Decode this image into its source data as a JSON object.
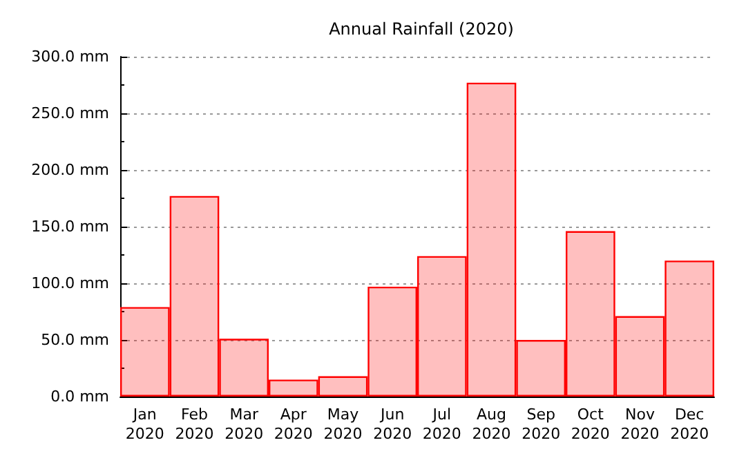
{
  "chart_data": {
    "type": "bar",
    "title": "Annual Rainfall (2020)",
    "categories": [
      "Jan\n2020",
      "Feb\n2020",
      "Mar\n2020",
      "Apr\n2020",
      "May\n2020",
      "Jun\n2020",
      "Jul\n2020",
      "Aug\n2020",
      "Sep\n2020",
      "Oct\n2020",
      "Nov\n2020",
      "Dec\n2020"
    ],
    "values": [
      79,
      177,
      51,
      15,
      18,
      97,
      124,
      277,
      50,
      146,
      71,
      120
    ],
    "color": "#ff0000",
    "ylim": [
      0,
      300
    ],
    "yticks": [
      {
        "value": 0,
        "label": "0.0 mm"
      },
      {
        "value": 50,
        "label": "50.0 mm"
      },
      {
        "value": 100,
        "label": "100.0 mm"
      },
      {
        "value": 150,
        "label": "150.0 mm"
      },
      {
        "value": 200,
        "label": "200.0 mm"
      },
      {
        "value": 250,
        "label": "250.0 mm"
      },
      {
        "value": 300,
        "label": "300.0 mm"
      }
    ],
    "grid": "y"
  }
}
